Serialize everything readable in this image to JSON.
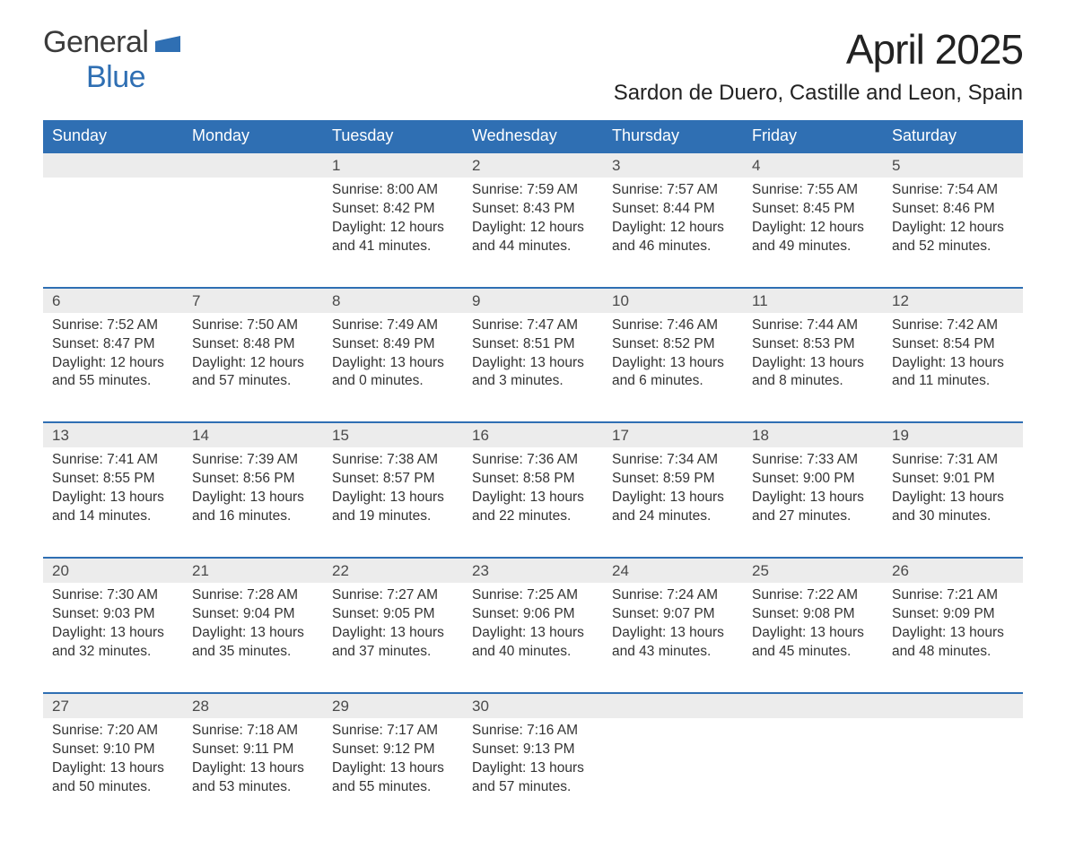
{
  "logo": {
    "text1": "General",
    "text2": "Blue",
    "shape_color": "#2f6fb3"
  },
  "header": {
    "title": "April 2025",
    "location": "Sardon de Duero, Castille and Leon, Spain"
  },
  "styling": {
    "header_bg": "#2f6fb3",
    "header_text": "#ffffff",
    "daynum_bg": "#ececec",
    "daynum_text": "#4a4a4a",
    "cell_text": "#333333",
    "row_divider": "#2f6fb3",
    "page_bg": "#ffffff",
    "font_family": "Arial",
    "title_fontsize": 46,
    "location_fontsize": 24,
    "weekday_fontsize": 18,
    "daynum_fontsize": 17,
    "body_fontsize": 15.5
  },
  "weekdays": [
    "Sunday",
    "Monday",
    "Tuesday",
    "Wednesday",
    "Thursday",
    "Friday",
    "Saturday"
  ],
  "weeks": [
    [
      {
        "day": "",
        "sunrise": "",
        "sunset": "",
        "daylight": ""
      },
      {
        "day": "",
        "sunrise": "",
        "sunset": "",
        "daylight": ""
      },
      {
        "day": "1",
        "sunrise": "Sunrise: 8:00 AM",
        "sunset": "Sunset: 8:42 PM",
        "daylight": "Daylight: 12 hours and 41 minutes."
      },
      {
        "day": "2",
        "sunrise": "Sunrise: 7:59 AM",
        "sunset": "Sunset: 8:43 PM",
        "daylight": "Daylight: 12 hours and 44 minutes."
      },
      {
        "day": "3",
        "sunrise": "Sunrise: 7:57 AM",
        "sunset": "Sunset: 8:44 PM",
        "daylight": "Daylight: 12 hours and 46 minutes."
      },
      {
        "day": "4",
        "sunrise": "Sunrise: 7:55 AM",
        "sunset": "Sunset: 8:45 PM",
        "daylight": "Daylight: 12 hours and 49 minutes."
      },
      {
        "day": "5",
        "sunrise": "Sunrise: 7:54 AM",
        "sunset": "Sunset: 8:46 PM",
        "daylight": "Daylight: 12 hours and 52 minutes."
      }
    ],
    [
      {
        "day": "6",
        "sunrise": "Sunrise: 7:52 AM",
        "sunset": "Sunset: 8:47 PM",
        "daylight": "Daylight: 12 hours and 55 minutes."
      },
      {
        "day": "7",
        "sunrise": "Sunrise: 7:50 AM",
        "sunset": "Sunset: 8:48 PM",
        "daylight": "Daylight: 12 hours and 57 minutes."
      },
      {
        "day": "8",
        "sunrise": "Sunrise: 7:49 AM",
        "sunset": "Sunset: 8:49 PM",
        "daylight": "Daylight: 13 hours and 0 minutes."
      },
      {
        "day": "9",
        "sunrise": "Sunrise: 7:47 AM",
        "sunset": "Sunset: 8:51 PM",
        "daylight": "Daylight: 13 hours and 3 minutes."
      },
      {
        "day": "10",
        "sunrise": "Sunrise: 7:46 AM",
        "sunset": "Sunset: 8:52 PM",
        "daylight": "Daylight: 13 hours and 6 minutes."
      },
      {
        "day": "11",
        "sunrise": "Sunrise: 7:44 AM",
        "sunset": "Sunset: 8:53 PM",
        "daylight": "Daylight: 13 hours and 8 minutes."
      },
      {
        "day": "12",
        "sunrise": "Sunrise: 7:42 AM",
        "sunset": "Sunset: 8:54 PM",
        "daylight": "Daylight: 13 hours and 11 minutes."
      }
    ],
    [
      {
        "day": "13",
        "sunrise": "Sunrise: 7:41 AM",
        "sunset": "Sunset: 8:55 PM",
        "daylight": "Daylight: 13 hours and 14 minutes."
      },
      {
        "day": "14",
        "sunrise": "Sunrise: 7:39 AM",
        "sunset": "Sunset: 8:56 PM",
        "daylight": "Daylight: 13 hours and 16 minutes."
      },
      {
        "day": "15",
        "sunrise": "Sunrise: 7:38 AM",
        "sunset": "Sunset: 8:57 PM",
        "daylight": "Daylight: 13 hours and 19 minutes."
      },
      {
        "day": "16",
        "sunrise": "Sunrise: 7:36 AM",
        "sunset": "Sunset: 8:58 PM",
        "daylight": "Daylight: 13 hours and 22 minutes."
      },
      {
        "day": "17",
        "sunrise": "Sunrise: 7:34 AM",
        "sunset": "Sunset: 8:59 PM",
        "daylight": "Daylight: 13 hours and 24 minutes."
      },
      {
        "day": "18",
        "sunrise": "Sunrise: 7:33 AM",
        "sunset": "Sunset: 9:00 PM",
        "daylight": "Daylight: 13 hours and 27 minutes."
      },
      {
        "day": "19",
        "sunrise": "Sunrise: 7:31 AM",
        "sunset": "Sunset: 9:01 PM",
        "daylight": "Daylight: 13 hours and 30 minutes."
      }
    ],
    [
      {
        "day": "20",
        "sunrise": "Sunrise: 7:30 AM",
        "sunset": "Sunset: 9:03 PM",
        "daylight": "Daylight: 13 hours and 32 minutes."
      },
      {
        "day": "21",
        "sunrise": "Sunrise: 7:28 AM",
        "sunset": "Sunset: 9:04 PM",
        "daylight": "Daylight: 13 hours and 35 minutes."
      },
      {
        "day": "22",
        "sunrise": "Sunrise: 7:27 AM",
        "sunset": "Sunset: 9:05 PM",
        "daylight": "Daylight: 13 hours and 37 minutes."
      },
      {
        "day": "23",
        "sunrise": "Sunrise: 7:25 AM",
        "sunset": "Sunset: 9:06 PM",
        "daylight": "Daylight: 13 hours and 40 minutes."
      },
      {
        "day": "24",
        "sunrise": "Sunrise: 7:24 AM",
        "sunset": "Sunset: 9:07 PM",
        "daylight": "Daylight: 13 hours and 43 minutes."
      },
      {
        "day": "25",
        "sunrise": "Sunrise: 7:22 AM",
        "sunset": "Sunset: 9:08 PM",
        "daylight": "Daylight: 13 hours and 45 minutes."
      },
      {
        "day": "26",
        "sunrise": "Sunrise: 7:21 AM",
        "sunset": "Sunset: 9:09 PM",
        "daylight": "Daylight: 13 hours and 48 minutes."
      }
    ],
    [
      {
        "day": "27",
        "sunrise": "Sunrise: 7:20 AM",
        "sunset": "Sunset: 9:10 PM",
        "daylight": "Daylight: 13 hours and 50 minutes."
      },
      {
        "day": "28",
        "sunrise": "Sunrise: 7:18 AM",
        "sunset": "Sunset: 9:11 PM",
        "daylight": "Daylight: 13 hours and 53 minutes."
      },
      {
        "day": "29",
        "sunrise": "Sunrise: 7:17 AM",
        "sunset": "Sunset: 9:12 PM",
        "daylight": "Daylight: 13 hours and 55 minutes."
      },
      {
        "day": "30",
        "sunrise": "Sunrise: 7:16 AM",
        "sunset": "Sunset: 9:13 PM",
        "daylight": "Daylight: 13 hours and 57 minutes."
      },
      {
        "day": "",
        "sunrise": "",
        "sunset": "",
        "daylight": ""
      },
      {
        "day": "",
        "sunrise": "",
        "sunset": "",
        "daylight": ""
      },
      {
        "day": "",
        "sunrise": "",
        "sunset": "",
        "daylight": ""
      }
    ]
  ]
}
